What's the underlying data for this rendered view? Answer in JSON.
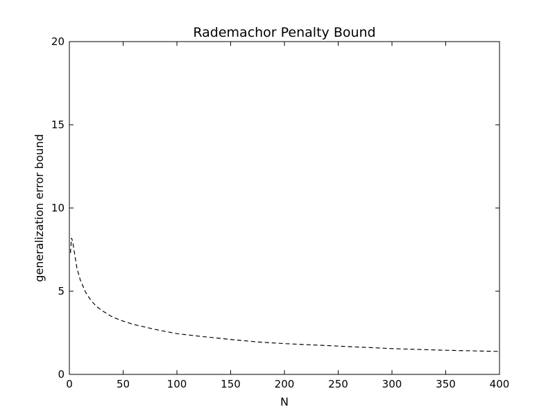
{
  "chart_data": {
    "type": "line",
    "title": "Rademachor Penalty Bound",
    "xlabel": "N",
    "ylabel": "generalization error bound",
    "xlim": [
      0,
      400
    ],
    "ylim": [
      0,
      20
    ],
    "x_ticks": [
      0,
      50,
      100,
      150,
      200,
      250,
      300,
      350,
      400
    ],
    "y_ticks": [
      0,
      5,
      10,
      15,
      20
    ],
    "grid": false,
    "legend": "none",
    "series": [
      {
        "line_style": "dashed",
        "color": "#000000",
        "x": [
          1,
          2,
          3,
          5,
          7,
          10,
          15,
          20,
          25,
          30,
          40,
          50,
          60,
          70,
          80,
          100,
          120,
          150,
          175,
          200,
          250,
          300,
          350,
          400
        ],
        "y": [
          7.3,
          8.2,
          8.0,
          7.2,
          6.4,
          5.7,
          4.95,
          4.45,
          4.1,
          3.85,
          3.45,
          3.2,
          3.0,
          2.85,
          2.7,
          2.45,
          2.3,
          2.1,
          1.95,
          1.85,
          1.7,
          1.55,
          1.45,
          1.38
        ]
      }
    ]
  }
}
